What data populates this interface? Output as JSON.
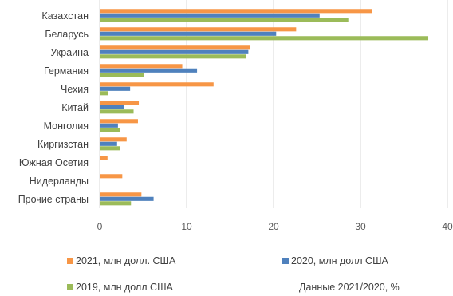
{
  "chart_data": {
    "type": "bar",
    "orientation": "horizontal",
    "categories": [
      "Казахстан",
      "Беларусь",
      "Украина",
      "Германия",
      "Чехия",
      "Китай",
      "Монголия",
      "Киргизстан",
      "Южная Осетия",
      "Нидерланды",
      "Прочие страны"
    ],
    "series": [
      {
        "name": "2021, млн долл. США",
        "color": "#F79646",
        "values": [
          31.3,
          22.6,
          17.3,
          9.5,
          13.1,
          4.5,
          4.4,
          3.1,
          0.9,
          2.6,
          4.8
        ]
      },
      {
        "name": "2020, млн долл США",
        "color": "#4F81BD",
        "values": [
          25.3,
          20.3,
          17.1,
          11.2,
          3.5,
          2.8,
          2.1,
          2.0,
          0,
          0,
          6.2
        ]
      },
      {
        "name": "2019, млн долл США",
        "color": "#9BBB59",
        "values": [
          28.6,
          37.8,
          16.8,
          5.1,
          1.0,
          3.9,
          2.3,
          2.3,
          0,
          0,
          3.6
        ]
      }
    ],
    "extra_legend_entry": "Данные 2021/2020, %",
    "xlim": [
      0,
      40
    ],
    "x_ticks": [
      "0",
      "10",
      "20",
      "30",
      "40"
    ],
    "grid": "vertical",
    "legend_position": "bottom"
  }
}
